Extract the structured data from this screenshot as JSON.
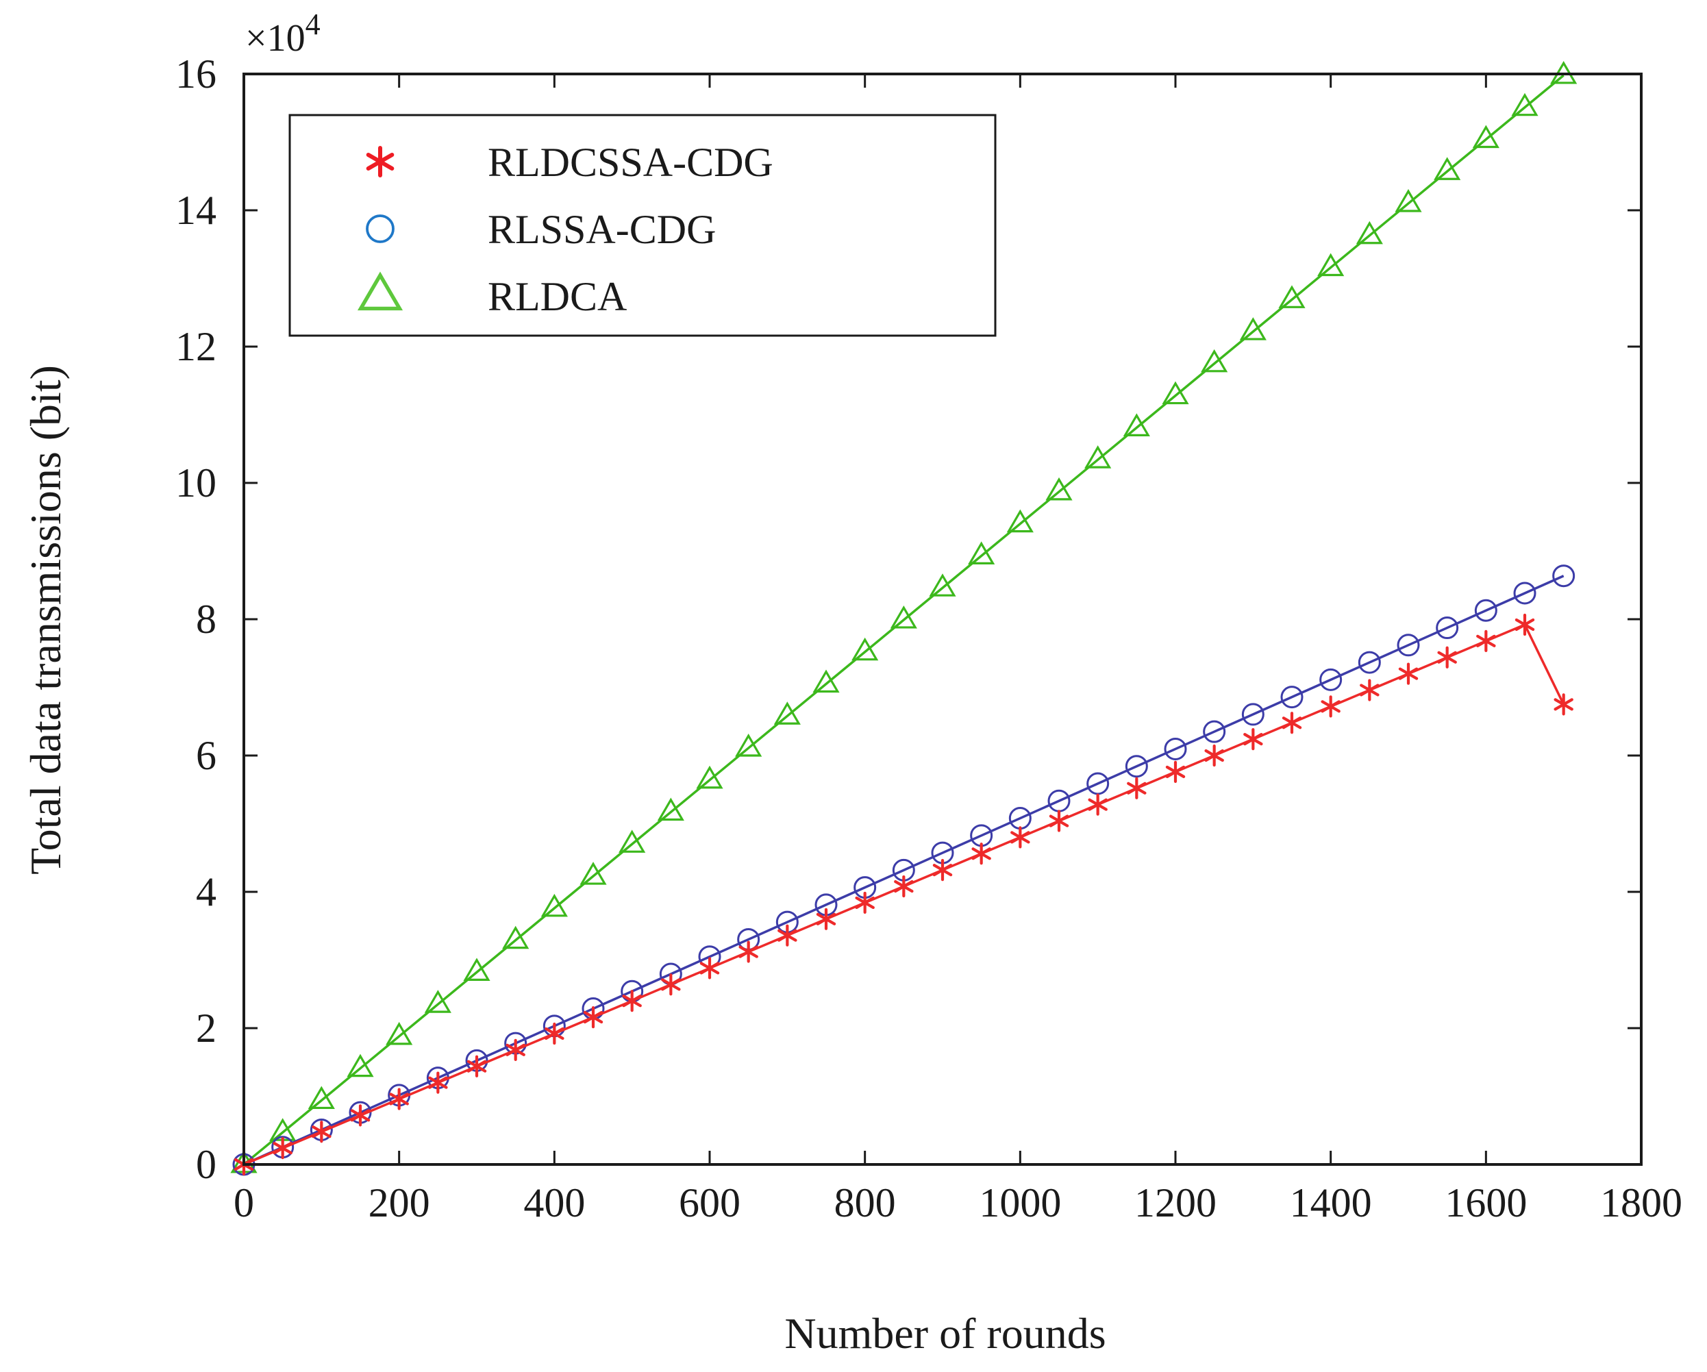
{
  "chart_data": {
    "type": "line",
    "title": "",
    "xlabel": "Number of rounds",
    "ylabel": "Total data transmissions (bit)",
    "y_multiplier_label": "×10",
    "y_multiplier_exponent": "4",
    "xlim": [
      0,
      1800
    ],
    "ylim": [
      0,
      16
    ],
    "x_ticks": [
      0,
      200,
      400,
      600,
      800,
      1000,
      1200,
      1400,
      1600,
      1800
    ],
    "x_tick_labels": [
      "0",
      "200",
      "400",
      "600",
      "800",
      "1000",
      "1200",
      "1400",
      "1600",
      "1800"
    ],
    "y_ticks": [
      0,
      2,
      4,
      6,
      8,
      10,
      12,
      14,
      16
    ],
    "y_tick_labels": [
      "0",
      "2",
      "4",
      "6",
      "8",
      "10",
      "12",
      "14",
      "16"
    ],
    "grid": false,
    "legend_position": "top-left",
    "x": [
      0,
      50,
      100,
      150,
      200,
      250,
      300,
      350,
      400,
      450,
      500,
      550,
      600,
      650,
      700,
      750,
      800,
      850,
      900,
      950,
      1000,
      1050,
      1100,
      1150,
      1200,
      1250,
      1300,
      1350,
      1400,
      1450,
      1500,
      1550,
      1600,
      1650,
      1700
    ],
    "series": [
      {
        "name": "RLDCSSA-CDG",
        "marker": "asterisk",
        "color": "#ee2a2a",
        "values": [
          0,
          0.24,
          0.48,
          0.72,
          0.96,
          1.2,
          1.44,
          1.68,
          1.92,
          2.16,
          2.4,
          2.64,
          2.88,
          3.12,
          3.36,
          3.6,
          3.84,
          4.08,
          4.32,
          4.56,
          4.8,
          5.04,
          5.28,
          5.52,
          5.76,
          6.0,
          6.24,
          6.48,
          6.72,
          6.96,
          7.2,
          7.44,
          7.68,
          7.92,
          6.75
        ]
      },
      {
        "name": "RLSSA-CDG",
        "marker": "circle",
        "color": "#3c3ca8",
        "values": [
          0,
          0.254,
          0.508,
          0.762,
          1.016,
          1.27,
          1.524,
          1.778,
          2.032,
          2.286,
          2.54,
          2.794,
          3.048,
          3.302,
          3.556,
          3.81,
          4.064,
          4.318,
          4.572,
          4.826,
          5.08,
          5.334,
          5.588,
          5.842,
          6.096,
          6.35,
          6.604,
          6.858,
          7.112,
          7.366,
          7.62,
          7.874,
          8.128,
          8.382,
          8.636
        ]
      },
      {
        "name": "RLDCA",
        "marker": "triangle",
        "color": "#3cb81c",
        "values": [
          0,
          0.47,
          0.94,
          1.41,
          1.88,
          2.35,
          2.82,
          3.29,
          3.76,
          4.23,
          4.7,
          5.17,
          5.64,
          6.11,
          6.58,
          7.05,
          7.52,
          7.99,
          8.46,
          8.93,
          9.4,
          9.87,
          10.34,
          10.81,
          11.28,
          11.75,
          12.22,
          12.69,
          13.16,
          13.63,
          14.1,
          14.57,
          15.04,
          15.51,
          15.98
        ]
      }
    ],
    "legend_colors": {
      "RLDCSSA-CDG": "#ee1c24",
      "RLSSA-CDG": "#1f78c8",
      "RLDCA": "#5ec83c"
    }
  }
}
